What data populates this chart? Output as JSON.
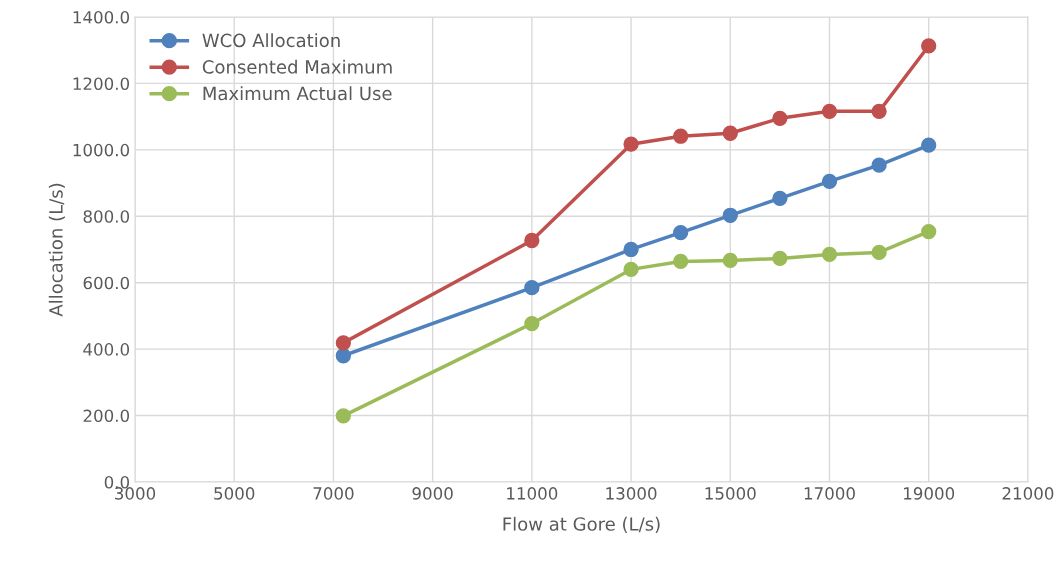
{
  "chart_data": {
    "type": "line",
    "xlabel": "Flow at Gore (L/s)",
    "ylabel": "Allocation (L/s)",
    "x": [
      7200,
      11000,
      13000,
      14000,
      15000,
      16000,
      17000,
      18000,
      19000
    ],
    "series": [
      {
        "name": "WCO Allocation",
        "color": "#4f81bd",
        "values": [
          380,
          585,
          700,
          751,
          803,
          854,
          905,
          954,
          1014
        ]
      },
      {
        "name": "Consented Maximum",
        "color": "#c0504d",
        "values": [
          419,
          727,
          1017,
          1041,
          1050,
          1095,
          1116,
          1116,
          1313
        ]
      },
      {
        "name": "Maximum Actual Use",
        "color": "#9bbb59",
        "values": [
          199,
          477,
          640,
          664,
          667,
          673,
          685,
          691,
          754
        ]
      }
    ],
    "xlim": [
      3000,
      21000
    ],
    "xticks": [
      3000,
      5000,
      7000,
      9000,
      11000,
      13000,
      15000,
      17000,
      19000,
      21000
    ],
    "ylim": [
      0,
      1400
    ],
    "yticks": [
      {
        "value": 0,
        "label": "0.0"
      },
      {
        "value": 200,
        "label": "200.0"
      },
      {
        "value": 400,
        "label": "400.0"
      },
      {
        "value": 600,
        "label": "600.0"
      },
      {
        "value": 800,
        "label": "800.0"
      },
      {
        "value": 1000,
        "label": "1000.0"
      },
      {
        "value": 1200,
        "label": "1200.0"
      },
      {
        "value": 1400,
        "label": "1400.0"
      }
    ],
    "grid": true,
    "legend": "top left",
    "marker": "circle",
    "line_style": "solid"
  }
}
